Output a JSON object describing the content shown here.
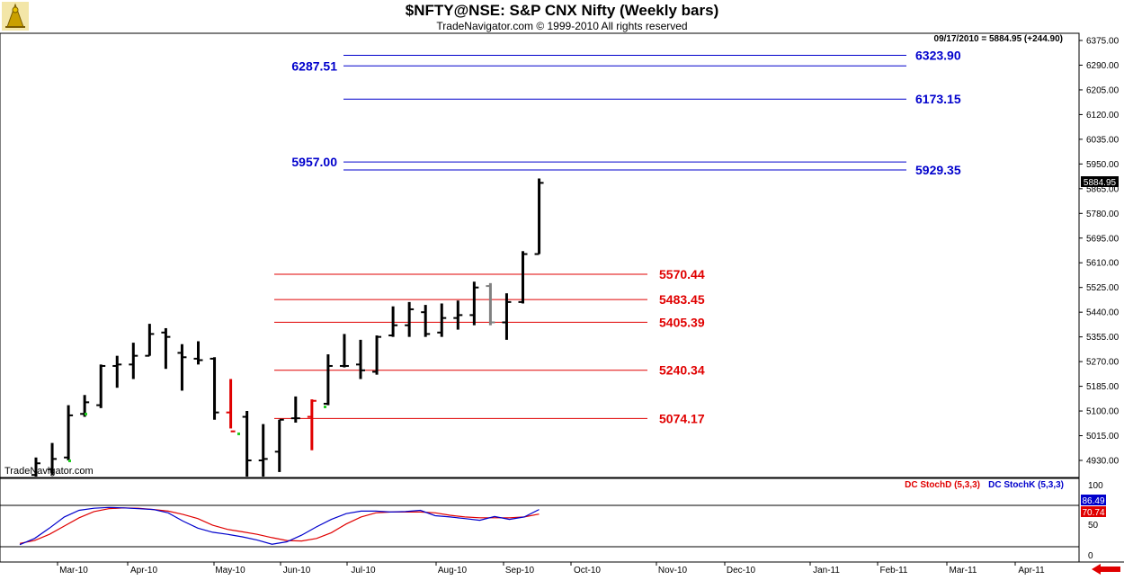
{
  "header": {
    "title": "$NFTY@NSE:  S&P CNX Nifty  (Weekly bars)",
    "subtitle": "TradeNavigator.com © 1999-2010 All rights reserved"
  },
  "watermark": "TradeNavigator.com",
  "last_bar_info": "09/17/2010 = 5884.95 (+244.90)",
  "last_price_label": "5884.95",
  "colors": {
    "bar": "#000000",
    "bar_highlight_red": "#e00000",
    "bar_highlight_gray": "#808080",
    "blue_levels": "#0000cc",
    "red_levels": "#e00000",
    "stoch_d": "#e00000",
    "stoch_k": "#0000cc"
  },
  "chart_data": [
    {
      "type": "ohlc",
      "title": "$NFTY@NSE:  S&P CNX Nifty  (Weekly bars)",
      "ylim": [
        4870,
        6400
      ],
      "y_ticks": [
        "6375.00",
        "6290.00",
        "6205.00",
        "6120.00",
        "6035.00",
        "5950.00",
        "5865.00",
        "5780.00",
        "5695.00",
        "5610.00",
        "5525.00",
        "5440.00",
        "5355.00",
        "5270.00",
        "5185.00",
        "5100.00",
        "5015.00",
        "4930.00"
      ],
      "x_tick_labels": [
        "Mar-10",
        "Apr-10",
        "May-10",
        "Jun-10",
        "Jul-10",
        "Aug-10",
        "Sep-10",
        "Oct-10",
        "Nov-10",
        "Dec-10",
        "Jan-11",
        "Feb-11",
        "Mar-11",
        "Apr-11"
      ],
      "bars": [
        {
          "o": 4880,
          "h": 4940,
          "l": 4870,
          "c": 4920
        },
        {
          "o": 4900,
          "h": 4990,
          "l": 4880,
          "c": 4935
        },
        {
          "o": 4940,
          "h": 5120,
          "l": 4930,
          "c": 5085
        },
        {
          "o": 5090,
          "h": 5155,
          "l": 5080,
          "c": 5130
        },
        {
          "o": 5120,
          "h": 5260,
          "l": 5110,
          "c": 5255
        },
        {
          "o": 5255,
          "h": 5290,
          "l": 5180,
          "c": 5260
        },
        {
          "o": 5260,
          "h": 5335,
          "l": 5210,
          "c": 5290
        },
        {
          "o": 5290,
          "h": 5400,
          "l": 5290,
          "c": 5365
        },
        {
          "o": 5370,
          "h": 5385,
          "l": 5245,
          "c": 5355
        },
        {
          "o": 5300,
          "h": 5330,
          "l": 5170,
          "c": 5285
        },
        {
          "o": 5280,
          "h": 5340,
          "l": 5260,
          "c": 5275
        },
        {
          "o": 5280,
          "h": 5285,
          "l": 5070,
          "c": 5095
        },
        {
          "o": 5095,
          "h": 5210,
          "l": 5040,
          "c": 5030,
          "color": "red"
        },
        {
          "o": 5080,
          "h": 5100,
          "l": 4810,
          "c": 4930
        },
        {
          "o": 4930,
          "h": 5055,
          "l": 4790,
          "c": 4935
        },
        {
          "o": 4960,
          "h": 5070,
          "l": 4890,
          "c": 5070
        },
        {
          "o": 5075,
          "h": 5150,
          "l": 5060,
          "c": 5075
        },
        {
          "o": 5080,
          "h": 5140,
          "l": 4965,
          "c": 5135,
          "color": "red"
        },
        {
          "o": 5125,
          "h": 5295,
          "l": 5120,
          "c": 5255
        },
        {
          "o": 5255,
          "h": 5365,
          "l": 5250,
          "c": 5255
        },
        {
          "o": 5260,
          "h": 5345,
          "l": 5210,
          "c": 5240
        },
        {
          "o": 5235,
          "h": 5360,
          "l": 5225,
          "c": 5355
        },
        {
          "o": 5360,
          "h": 5460,
          "l": 5355,
          "c": 5395
        },
        {
          "o": 5395,
          "h": 5475,
          "l": 5355,
          "c": 5450
        },
        {
          "o": 5440,
          "h": 5465,
          "l": 5355,
          "c": 5365
        },
        {
          "o": 5370,
          "h": 5470,
          "l": 5355,
          "c": 5420
        },
        {
          "o": 5420,
          "h": 5480,
          "l": 5380,
          "c": 5430
        },
        {
          "o": 5430,
          "h": 5545,
          "l": 5395,
          "c": 5525
        },
        {
          "o": 5530,
          "h": 5540,
          "l": 5395,
          "c": 5405,
          "color": "gray"
        },
        {
          "o": 5405,
          "h": 5505,
          "l": 5345,
          "c": 5475
        },
        {
          "o": 5475,
          "h": 5650,
          "l": 5470,
          "c": 5640
        },
        {
          "o": 5640,
          "h": 5900,
          "l": 5640,
          "c": 5884.95
        }
      ],
      "blue_levels": [
        {
          "label": "6323.90",
          "value": 6323.9,
          "side": "right"
        },
        {
          "label": "6287.51",
          "value": 6287.51,
          "side": "left"
        },
        {
          "label": "6173.15",
          "value": 6173.15,
          "side": "right"
        },
        {
          "label": "5957.00",
          "value": 5957.0,
          "side": "left"
        },
        {
          "label": "5929.35",
          "value": 5929.35,
          "side": "right"
        }
      ],
      "red_levels": [
        {
          "label": "5570.44",
          "value": 5570.44
        },
        {
          "label": "5483.45",
          "value": 5483.45
        },
        {
          "label": "5405.39",
          "value": 5405.39
        },
        {
          "label": "5240.34",
          "value": 5240.34
        },
        {
          "label": "5074.17",
          "value": 5074.17
        }
      ]
    },
    {
      "type": "line",
      "ylim": [
        0,
        100
      ],
      "y_ticks": [
        "100",
        "50",
        "0"
      ],
      "value_labels": [
        "86.49",
        "70.74"
      ],
      "series": [
        {
          "name": "DC StochD (5,3,3)",
          "color": "#e00000",
          "values": [
            8,
            15,
            30,
            50,
            70,
            85,
            92,
            94,
            93,
            90,
            86,
            78,
            68,
            52,
            42,
            36,
            30,
            22,
            15,
            14,
            20,
            34,
            55,
            72,
            82,
            84,
            84,
            84,
            82,
            76,
            72,
            70,
            70,
            70,
            72,
            79
          ]
        },
        {
          "name": "DC StochK (5,3,3)",
          "color": "#0000cc",
          "values": [
            5,
            20,
            45,
            72,
            88,
            93,
            95,
            94,
            92,
            90,
            82,
            62,
            45,
            35,
            30,
            24,
            16,
            6,
            12,
            28,
            48,
            66,
            80,
            86,
            86,
            84,
            85,
            88,
            75,
            72,
            68,
            64,
            73,
            66,
            72,
            90
          ]
        }
      ]
    }
  ]
}
